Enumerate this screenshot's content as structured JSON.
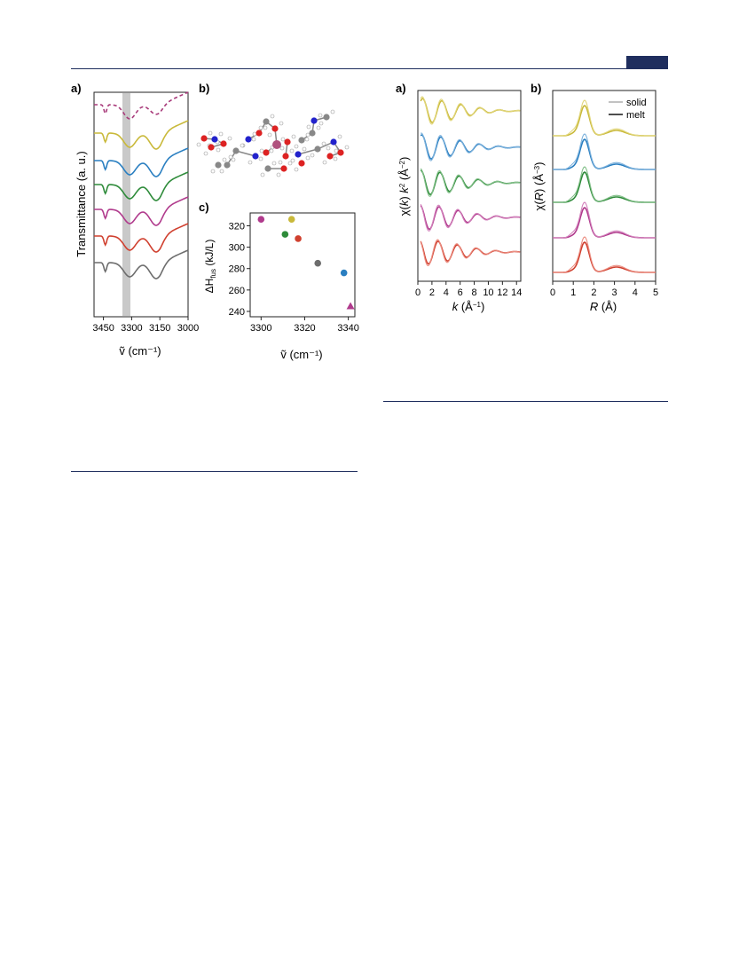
{
  "colors": {
    "header": "#1f2e5e",
    "yellow": "#c9b93a",
    "blue": "#2a7fc1",
    "green": "#2e8b3a",
    "magenta": "#b03a8c",
    "red": "#d0402f",
    "gray": "#6d6d6d",
    "dashed": "#a83a7a",
    "ir_band": "#c9c9c9"
  },
  "figure_left": {
    "panel_a": {
      "label": "a)",
      "ylabel": "Transmittance (a. u.)",
      "xlabel": "ṽ (cm⁻¹)",
      "xticks": [
        "3450",
        "3300",
        "3150",
        "3000"
      ],
      "highlight_cm": 3320
    },
    "panel_b": {
      "label": "b)"
    },
    "panel_c": {
      "label": "c)"
    }
  },
  "figure_right": {
    "panel_a": {
      "label": "a)",
      "ylabel_parts": [
        "χ(",
        "k",
        ") ",
        "k",
        "2",
        " (Å",
        "−2",
        ")"
      ],
      "xlabel_parts": [
        "k",
        " (Å",
        "−1",
        ")"
      ],
      "xticks": [
        "0",
        "2",
        "4",
        "6",
        "8",
        "10",
        "12",
        "14"
      ]
    },
    "panel_b": {
      "label": "b)",
      "ylabel_parts": [
        "χ(",
        "R",
        ") (Å",
        "−3",
        ")"
      ],
      "xlabel_parts": [
        "R",
        " (Å)"
      ],
      "xticks": [
        "0",
        "1",
        "2",
        "3",
        "4",
        "5"
      ],
      "legend": [
        "solid",
        "melt"
      ]
    }
  },
  "chart_data": [
    {
      "type": "scatter",
      "title": "",
      "xlabel": "ṽ (cm⁻¹)",
      "ylabel": "ΔH_fus (kJ/L)",
      "xlim": [
        3295,
        3343
      ],
      "ylim": [
        235,
        332
      ],
      "xticks": [
        3300,
        3320,
        3340
      ],
      "yticks": [
        240,
        260,
        280,
        300,
        320
      ],
      "points": [
        {
          "x": 3300,
          "y": 326,
          "color": "#b03a8c",
          "marker": "circle"
        },
        {
          "x": 3314,
          "y": 326,
          "color": "#c9b93a",
          "marker": "circle"
        },
        {
          "x": 3311,
          "y": 312,
          "color": "#2e8b3a",
          "marker": "circle"
        },
        {
          "x": 3317,
          "y": 308,
          "color": "#d0402f",
          "marker": "circle"
        },
        {
          "x": 3326,
          "y": 285,
          "color": "#6d6d6d",
          "marker": "circle"
        },
        {
          "x": 3338,
          "y": 276,
          "color": "#2a7fc1",
          "marker": "circle"
        },
        {
          "x": 3341,
          "y": 245,
          "color": "#b03a8c",
          "marker": "triangle"
        }
      ]
    }
  ]
}
